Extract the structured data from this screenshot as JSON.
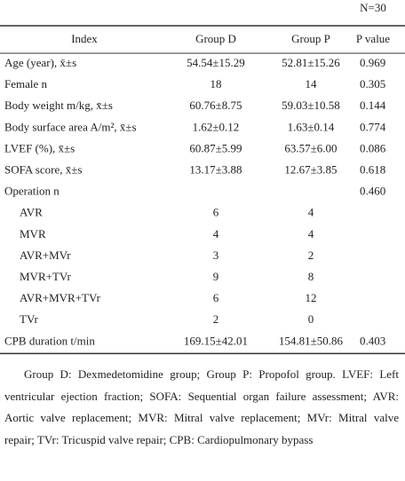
{
  "header": {
    "sample_size": "N=30"
  },
  "table": {
    "columns": [
      "Index",
      "Group D",
      "Group P",
      "P value"
    ],
    "rows": [
      {
        "cells": [
          "Age (year), x̄±s",
          "54.54±15.29",
          "52.81±15.26",
          "0.969"
        ]
      },
      {
        "cells": [
          "Female n",
          "18",
          "14",
          "0.305"
        ]
      },
      {
        "cells": [
          "Body weight m/kg, x̄±s",
          "60.76±8.75",
          "59.03±10.58",
          "0.144"
        ]
      },
      {
        "cells": [
          "Body surface area A/m², x̄±s",
          "1.62±0.12",
          "1.63±0.14",
          "0.774"
        ]
      },
      {
        "cells": [
          "LVEF (%), x̄±s",
          "60.87±5.99",
          "63.57±6.00",
          "0.086"
        ]
      },
      {
        "cells": [
          "SOFA score, x̄±s",
          "13.17±3.88",
          "12.67±3.85",
          "0.618"
        ]
      },
      {
        "cells": [
          "Operation n",
          null,
          null,
          "0.460"
        ],
        "subrows": [
          [
            "AVR",
            "6",
            "4"
          ],
          [
            "MVR",
            "4",
            "4"
          ],
          [
            "AVR+MVr",
            "3",
            "2"
          ],
          [
            "MVR+TVr",
            "9",
            "8"
          ],
          [
            "AVR+MVR+TVr",
            "6",
            "12"
          ],
          [
            "TVr",
            "2",
            "0"
          ]
        ]
      },
      {
        "cells": [
          "CPB duration t/min",
          "169.15±42.01",
          "154.81±50.86",
          "0.403"
        ]
      }
    ]
  },
  "footnote": "Group D: Dexmedetomidine group; Group P: Propofol group. LVEF: Left ventricular ejection fraction; SOFA: Sequential organ failure assessment; AVR: Aortic valve replacement; MVR: Mitral valve replacement; MVr: Mitral valve repair; TVr: Tricuspid valve repair; CPB: Cardiopulmonary bypass"
}
